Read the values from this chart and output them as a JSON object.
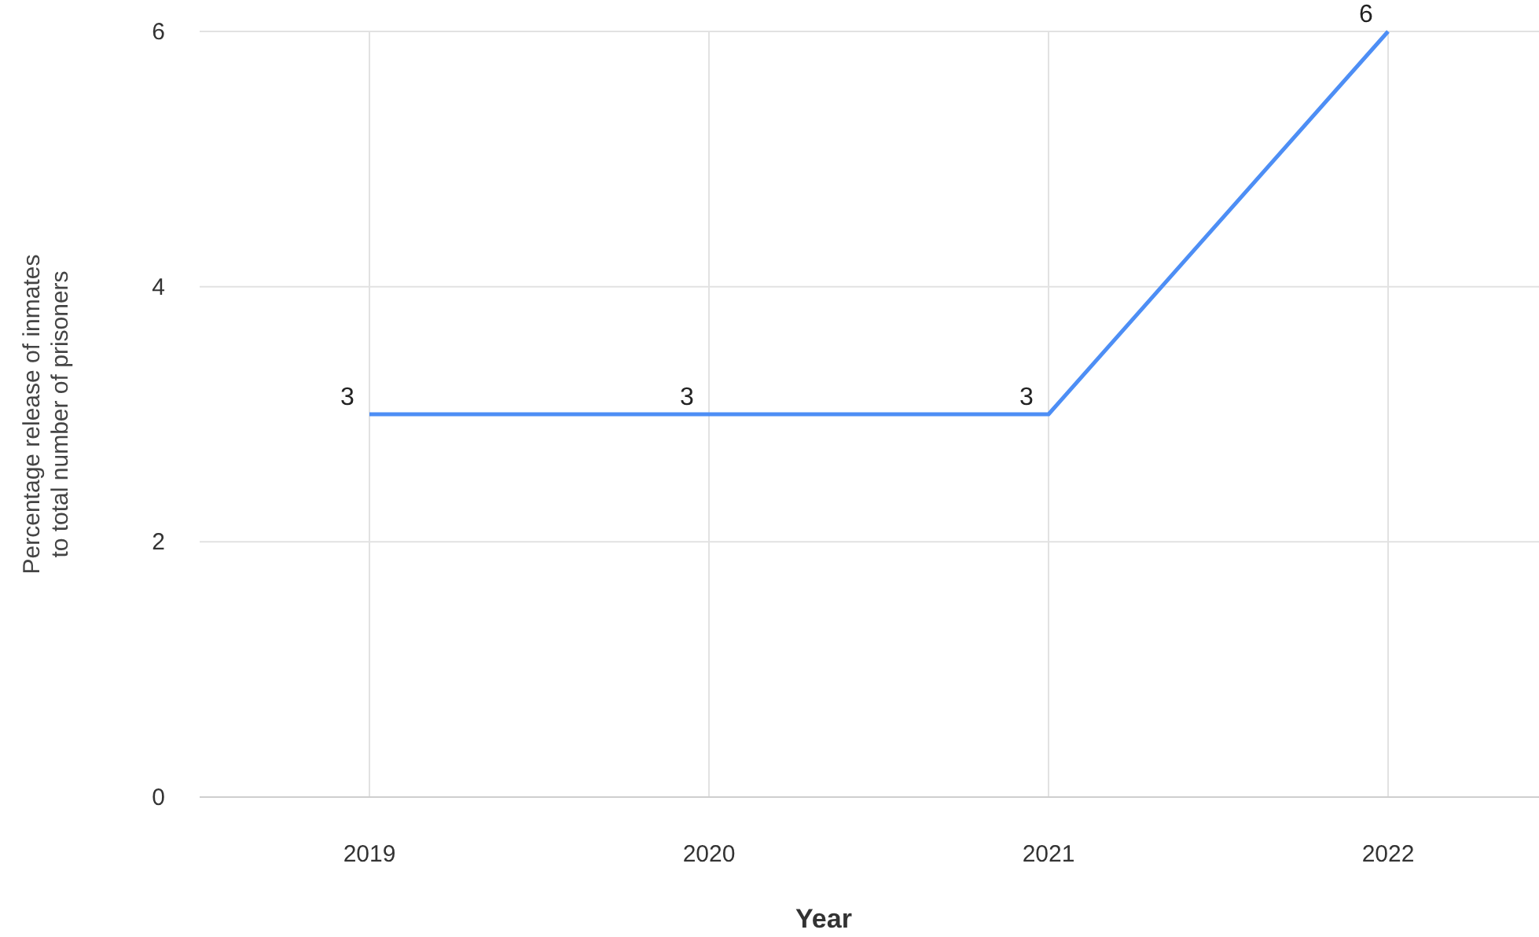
{
  "chart_data": {
    "type": "line",
    "xlabel": "Year",
    "ylabel": "Percentage release of inmates to total number of prisoners",
    "categories": [
      "2019",
      "2020",
      "2021",
      "2022"
    ],
    "series": [
      {
        "color": "#4d8ef5",
        "values": [
          3,
          3,
          3,
          6
        ]
      }
    ],
    "ylim": [
      0,
      6
    ],
    "yticks": [
      0,
      2,
      4,
      6
    ],
    "grid": true,
    "data_labels": true,
    "marker": "none",
    "line_style": "solid"
  }
}
